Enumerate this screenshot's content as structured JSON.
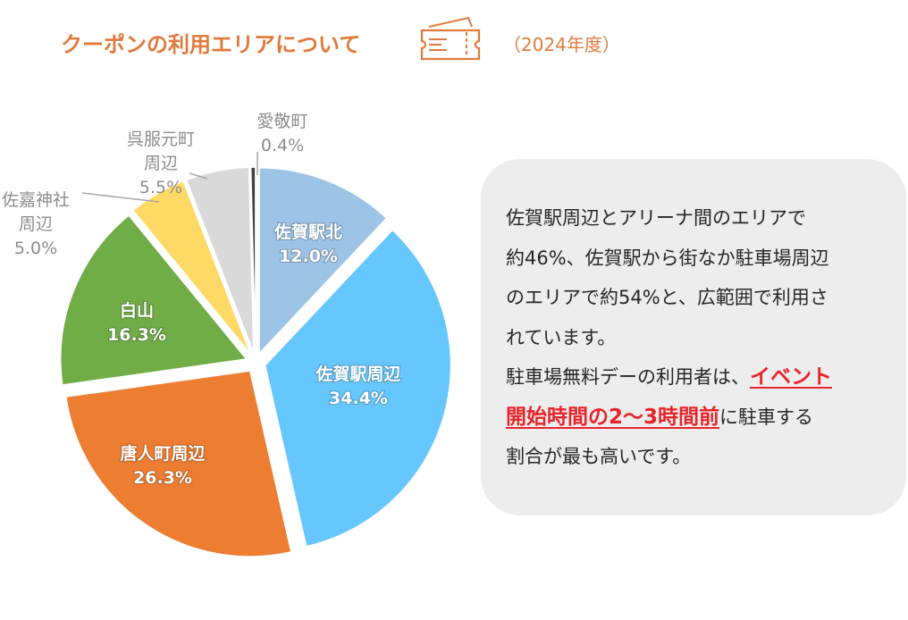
{
  "header": {
    "title": "クーポンの利用エリアについて",
    "year": "（2024年度）"
  },
  "chart_data": {
    "type": "pie",
    "categories": [
      "佐賀駅北",
      "佐賀駅周辺",
      "唐人町周辺",
      "白山",
      "佐嘉神社周辺",
      "呉服元町周辺",
      "愛敬町"
    ],
    "values": [
      12.0,
      34.4,
      26.3,
      16.3,
      5.0,
      5.5,
      0.4
    ],
    "labels": [
      "12.0%",
      "34.4%",
      "26.3%",
      "16.3%",
      "5.0%",
      "5.5%",
      "0.4%"
    ],
    "colors": [
      "#9DC3E6",
      "#66C7FF",
      "#ED7D31",
      "#70AD47",
      "#FFD966",
      "#D9D9D9",
      "#404040"
    ],
    "title": "",
    "legend": "none"
  },
  "note": {
    "line1": "佐賀駅周辺とアリーナ間のエリアで",
    "line2": "約46%、佐賀駅から街なか駐車場周辺",
    "line3": "のエリアで約54%と、広範囲で利用さ",
    "line4": "れています。",
    "line5_prefix": "駐車場無料デーの利用者は、",
    "line5_highlight": "イベント",
    "line6_highlight": "開始時間の2～3時間前",
    "line6_suffix": "に駐車する",
    "line7": "割合が最も高いです。"
  }
}
